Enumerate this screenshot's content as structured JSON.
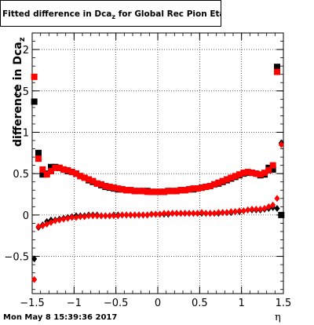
{
  "title": {
    "main": "Fitted difference in Dca",
    "sub": "z",
    "rest": " for Global Rec Pion EtapT"
  },
  "timestamp": "Mon May  8 15:39:36 2017",
  "colors": {
    "series1": "#000000",
    "series2": "#ff0000",
    "grid": "#000000",
    "axis": "#000000"
  },
  "chart_data": {
    "type": "scatter",
    "title": "Fitted difference in Dca_z for Global Rec Pion EtapT",
    "xlabel": "η",
    "ylabel": "difference in Dca_z",
    "xlim": [
      -1.5,
      1.5
    ],
    "ylim": [
      -0.95,
      2.2
    ],
    "xticks": [
      -1.5,
      -1,
      -0.5,
      0,
      0.5,
      1,
      1.5
    ],
    "xtick_labels": [
      "−1.5",
      "−1",
      "−0.5",
      "0",
      "0.5",
      "1",
      "1.5"
    ],
    "yticks": [
      -0.5,
      0,
      0.5,
      1,
      1.5,
      2
    ],
    "ytick_labels": [
      "−0.5",
      "0",
      "0.5",
      "1",
      "1.5",
      "2"
    ],
    "grid": true,
    "series": [
      {
        "marker": "square",
        "color": "#000000",
        "x": [
          -1.475,
          -1.425,
          -1.375,
          -1.325,
          -1.275,
          -1.225,
          -1.175,
          -1.125,
          -1.075,
          -1.025,
          -0.975,
          -0.925,
          -0.875,
          -0.825,
          -0.775,
          -0.725,
          -0.675,
          -0.625,
          -0.575,
          -0.525,
          -0.475,
          -0.425,
          -0.375,
          -0.325,
          -0.275,
          -0.225,
          -0.175,
          -0.125,
          -0.075,
          -0.025,
          0.025,
          0.075,
          0.125,
          0.175,
          0.225,
          0.275,
          0.325,
          0.375,
          0.425,
          0.475,
          0.525,
          0.575,
          0.625,
          0.675,
          0.725,
          0.775,
          0.825,
          0.875,
          0.925,
          0.975,
          1.025,
          1.075,
          1.125,
          1.175,
          1.225,
          1.275,
          1.325,
          1.375,
          1.425,
          1.475
        ],
        "y": [
          1.37,
          0.75,
          0.49,
          0.5,
          0.58,
          0.58,
          0.57,
          0.55,
          0.53,
          0.52,
          0.5,
          0.47,
          0.45,
          0.42,
          0.4,
          0.38,
          0.36,
          0.34,
          0.33,
          0.32,
          0.31,
          0.31,
          0.3,
          0.3,
          0.29,
          0.29,
          0.29,
          0.29,
          0.28,
          0.28,
          0.28,
          0.28,
          0.29,
          0.29,
          0.29,
          0.3,
          0.3,
          0.31,
          0.31,
          0.32,
          0.33,
          0.34,
          0.35,
          0.37,
          0.38,
          0.4,
          0.42,
          0.44,
          0.46,
          0.48,
          0.5,
          0.51,
          0.51,
          0.5,
          0.48,
          0.49,
          0.57,
          0.55,
          1.79,
          0.0
        ]
      },
      {
        "marker": "square",
        "color": "#ff0000",
        "x": [
          -1.475,
          -1.425,
          -1.375,
          -1.325,
          -1.275,
          -1.225,
          -1.175,
          -1.125,
          -1.075,
          -1.025,
          -0.975,
          -0.925,
          -0.875,
          -0.825,
          -0.775,
          -0.725,
          -0.675,
          -0.625,
          -0.575,
          -0.525,
          -0.475,
          -0.425,
          -0.375,
          -0.325,
          -0.275,
          -0.225,
          -0.175,
          -0.125,
          -0.075,
          -0.025,
          0.025,
          0.075,
          0.125,
          0.175,
          0.225,
          0.275,
          0.325,
          0.375,
          0.425,
          0.475,
          0.525,
          0.575,
          0.625,
          0.675,
          0.725,
          0.775,
          0.825,
          0.875,
          0.925,
          0.975,
          1.025,
          1.075,
          1.125,
          1.175,
          1.225,
          1.275,
          1.325,
          1.375,
          1.425
        ],
        "y": [
          1.67,
          0.68,
          0.55,
          0.49,
          0.53,
          0.57,
          0.57,
          0.55,
          0.54,
          0.52,
          0.5,
          0.47,
          0.45,
          0.43,
          0.41,
          0.38,
          0.37,
          0.35,
          0.34,
          0.33,
          0.32,
          0.31,
          0.3,
          0.3,
          0.29,
          0.29,
          0.29,
          0.28,
          0.28,
          0.28,
          0.28,
          0.28,
          0.29,
          0.29,
          0.29,
          0.3,
          0.3,
          0.31,
          0.32,
          0.32,
          0.33,
          0.34,
          0.35,
          0.37,
          0.39,
          0.41,
          0.43,
          0.45,
          0.47,
          0.49,
          0.51,
          0.52,
          0.51,
          0.5,
          0.49,
          0.51,
          0.54,
          0.6,
          1.73
        ]
      },
      {
        "marker": "diamond",
        "color": "#000000",
        "x": [
          -1.475,
          -1.425,
          -1.375,
          -1.325,
          -1.275,
          -1.225,
          -1.175,
          -1.125,
          -1.075,
          -1.025,
          -0.975,
          -0.925,
          -0.875,
          -0.825,
          -0.775,
          -0.725,
          -0.675,
          -0.625,
          -0.575,
          -0.525,
          -0.475,
          -0.425,
          -0.375,
          -0.325,
          -0.275,
          -0.225,
          -0.175,
          -0.125,
          -0.075,
          -0.025,
          0.025,
          0.075,
          0.125,
          0.175,
          0.225,
          0.275,
          0.325,
          0.375,
          0.425,
          0.475,
          0.525,
          0.575,
          0.625,
          0.675,
          0.725,
          0.775,
          0.825,
          0.875,
          0.925,
          0.975,
          1.025,
          1.075,
          1.125,
          1.175,
          1.225,
          1.275,
          1.325,
          1.375,
          1.425,
          1.475
        ],
        "y": [
          -0.53,
          -0.15,
          -0.12,
          -0.08,
          -0.06,
          -0.06,
          -0.05,
          -0.04,
          -0.03,
          -0.02,
          -0.01,
          -0.01,
          -0.01,
          0.0,
          0.0,
          0.0,
          -0.01,
          -0.01,
          -0.01,
          0.0,
          0.0,
          0.0,
          0.0,
          0.0,
          0.0,
          0.0,
          0.0,
          0.0,
          0.01,
          0.01,
          0.01,
          0.01,
          0.01,
          0.02,
          0.02,
          0.02,
          0.02,
          0.02,
          0.02,
          0.02,
          0.02,
          0.02,
          0.02,
          0.02,
          0.02,
          0.03,
          0.03,
          0.03,
          0.04,
          0.04,
          0.05,
          0.06,
          0.06,
          0.06,
          0.06,
          0.07,
          0.08,
          0.09,
          0.08,
          0.87
        ]
      },
      {
        "marker": "diamond",
        "color": "#ff0000",
        "x": [
          -1.475,
          -1.425,
          -1.375,
          -1.325,
          -1.275,
          -1.225,
          -1.175,
          -1.125,
          -1.075,
          -1.025,
          -0.975,
          -0.925,
          -0.875,
          -0.825,
          -0.775,
          -0.725,
          -0.675,
          -0.625,
          -0.575,
          -0.525,
          -0.475,
          -0.425,
          -0.375,
          -0.325,
          -0.275,
          -0.225,
          -0.175,
          -0.125,
          -0.075,
          -0.025,
          0.025,
          0.075,
          0.125,
          0.175,
          0.225,
          0.275,
          0.325,
          0.375,
          0.425,
          0.475,
          0.525,
          0.575,
          0.625,
          0.675,
          0.725,
          0.775,
          0.825,
          0.875,
          0.925,
          0.975,
          1.025,
          1.075,
          1.125,
          1.175,
          1.225,
          1.275,
          1.325,
          1.375,
          1.425,
          1.475
        ],
        "y": [
          -0.78,
          -0.14,
          -0.13,
          -0.11,
          -0.09,
          -0.07,
          -0.06,
          -0.05,
          -0.04,
          -0.03,
          -0.03,
          -0.02,
          -0.02,
          -0.01,
          -0.01,
          -0.01,
          -0.01,
          -0.01,
          -0.01,
          -0.01,
          -0.01,
          0.0,
          0.0,
          0.0,
          0.0,
          0.0,
          0.0,
          0.0,
          0.01,
          0.01,
          0.01,
          0.02,
          0.02,
          0.02,
          0.02,
          0.02,
          0.02,
          0.02,
          0.02,
          0.02,
          0.03,
          0.02,
          0.02,
          0.02,
          0.03,
          0.03,
          0.03,
          0.04,
          0.04,
          0.05,
          0.05,
          0.06,
          0.07,
          0.07,
          0.07,
          0.08,
          0.1,
          0.12,
          0.2,
          0.85
        ]
      }
    ]
  }
}
